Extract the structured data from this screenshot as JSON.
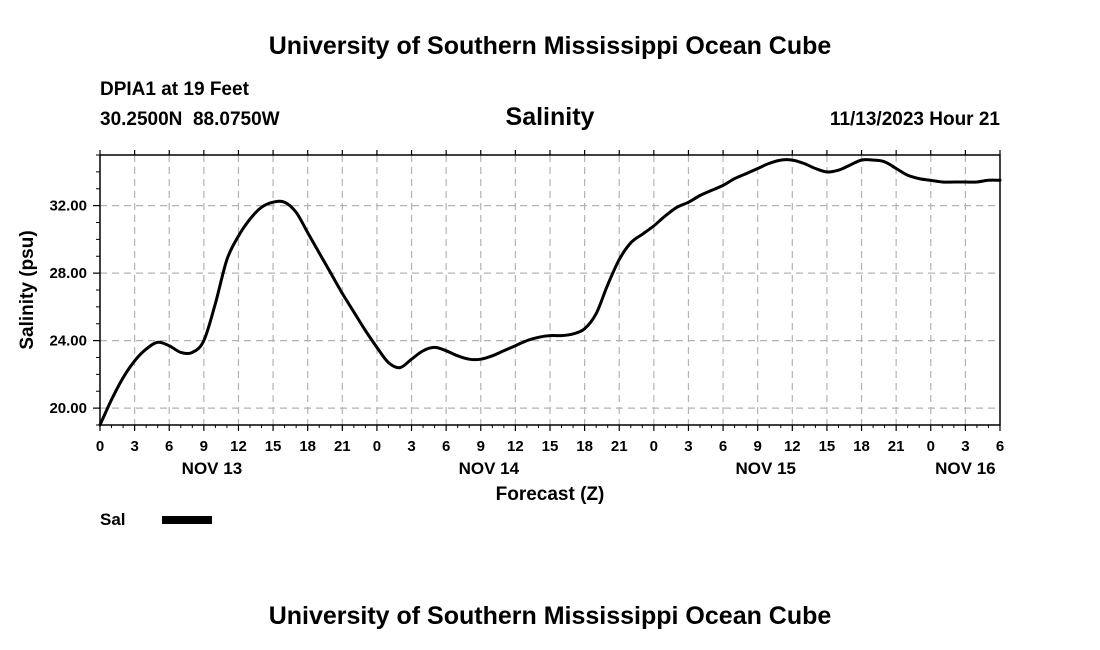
{
  "chart_data": {
    "type": "line",
    "title": "University of Southern Mississippi Ocean Cube",
    "footer_title": "University of Southern Mississippi Ocean Cube",
    "station": "DPIA1 at 19 Feet",
    "coords": "30.2500N  88.0750W",
    "variable": "Salinity",
    "run_time": "11/13/2023 Hour 21",
    "xlabel": "Forecast (Z)",
    "ylabel": "Salinity (psu)",
    "xlim": [
      0,
      78
    ],
    "ylim": [
      19.0,
      35.0
    ],
    "x_ticks": [
      0,
      3,
      6,
      9,
      12,
      15,
      18,
      21,
      24,
      27,
      30,
      33,
      36,
      39,
      42,
      45,
      48,
      51,
      54,
      57,
      60,
      63,
      66,
      69,
      72,
      75,
      78
    ],
    "x_tick_labels": [
      "0",
      "3",
      "6",
      "9",
      "12",
      "15",
      "18",
      "21",
      "0",
      "3",
      "6",
      "9",
      "12",
      "15",
      "18",
      "21",
      "0",
      "3",
      "6",
      "9",
      "12",
      "15",
      "18",
      "21",
      "0",
      "3",
      "6"
    ],
    "y_ticks": [
      20,
      24,
      28,
      32
    ],
    "y_tick_labels": [
      "20.00",
      "24.00",
      "28.00",
      "32.00"
    ],
    "day_labels": [
      {
        "x": 9.7,
        "label": "NOV 13"
      },
      {
        "x": 33.7,
        "label": "NOV 14"
      },
      {
        "x": 57.7,
        "label": "NOV 15"
      },
      {
        "x": 75,
        "label": "NOV 16"
      }
    ],
    "legend": [
      {
        "name": "Sal"
      }
    ],
    "series": [
      {
        "name": "Sal",
        "x": [
          0,
          1,
          2,
          3,
          4,
          5,
          6,
          7,
          8,
          9,
          10,
          11,
          12,
          13,
          14,
          15,
          16,
          17,
          18,
          19,
          20,
          21,
          22,
          23,
          24,
          25,
          26,
          27,
          28,
          29,
          30,
          31,
          32,
          33,
          34,
          35,
          36,
          37,
          38,
          39,
          40,
          41,
          42,
          43,
          44,
          45,
          46,
          47,
          48,
          49,
          50,
          51,
          52,
          53,
          54,
          55,
          56,
          57,
          58,
          59,
          60,
          61,
          62,
          63,
          64,
          65,
          66,
          67,
          68,
          69,
          70,
          71,
          72,
          73,
          74,
          75,
          76,
          77,
          78
        ],
        "y": [
          19.0,
          20.5,
          21.8,
          22.8,
          23.5,
          23.9,
          23.7,
          23.3,
          23.3,
          24.0,
          26.2,
          28.8,
          30.2,
          31.2,
          31.9,
          32.2,
          32.2,
          31.6,
          30.4,
          29.2,
          28.0,
          26.8,
          25.7,
          24.6,
          23.6,
          22.7,
          22.4,
          22.9,
          23.4,
          23.6,
          23.4,
          23.1,
          22.9,
          22.9,
          23.1,
          23.4,
          23.7,
          24.0,
          24.2,
          24.3,
          24.3,
          24.4,
          24.7,
          25.6,
          27.3,
          28.8,
          29.8,
          30.3,
          30.8,
          31.4,
          31.9,
          32.2,
          32.6,
          32.9,
          33.2,
          33.6,
          33.9,
          34.2,
          34.5,
          34.7,
          34.7,
          34.5,
          34.2,
          34.0,
          34.1,
          34.4,
          34.7,
          34.7,
          34.6,
          34.2,
          33.8,
          33.6,
          33.5,
          33.4,
          33.4,
          33.4,
          33.4,
          33.5,
          33.5
        ]
      }
    ]
  }
}
